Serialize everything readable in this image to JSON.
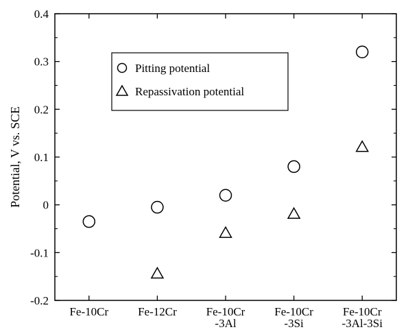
{
  "chart_data": {
    "type": "scatter",
    "title": "",
    "xlabel": "",
    "ylabel": "Potential,   V vs. SCE",
    "ylim": [
      -0.2,
      0.4
    ],
    "yticks": [
      "-0.2",
      "-0.1",
      "0",
      "0.1",
      "0.2",
      "0.3",
      "0.4"
    ],
    "ytick_values": [
      -0.2,
      -0.1,
      0,
      0.1,
      0.2,
      0.3,
      0.4
    ],
    "categories": [
      [
        "Fe-10Cr"
      ],
      [
        "Fe-12Cr"
      ],
      [
        "Fe-10Cr",
        "-3Al"
      ],
      [
        "Fe-10Cr",
        "-3Si"
      ],
      [
        "Fe-10Cr",
        "-3Al-3Si"
      ]
    ],
    "series": [
      {
        "name": "Pitting potential",
        "marker": "circle",
        "values": [
          -0.035,
          -0.005,
          0.02,
          0.08,
          0.32
        ]
      },
      {
        "name": "Repassivation potential",
        "marker": "triangle",
        "values": [
          null,
          -0.145,
          -0.06,
          -0.02,
          0.12
        ]
      }
    ],
    "grid": false,
    "legend_position": "top-center"
  }
}
